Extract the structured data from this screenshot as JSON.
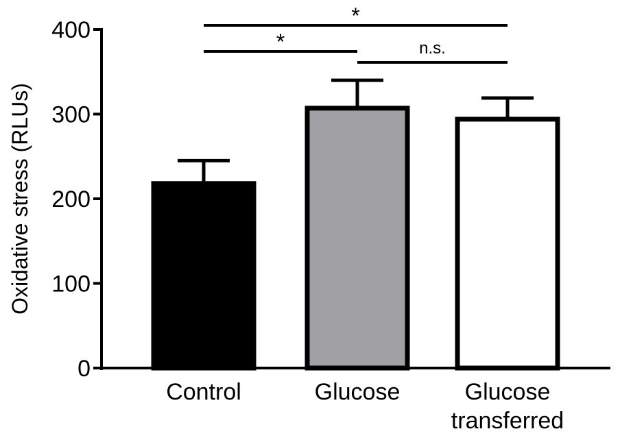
{
  "chart_data": {
    "type": "bar",
    "title": "",
    "xlabel": "",
    "ylabel": "Oxidative stress (RLUs)",
    "ylim": [
      0,
      400
    ],
    "yticks": [
      0,
      100,
      200,
      300,
      400
    ],
    "categories": [
      {
        "lines": [
          "Control"
        ]
      },
      {
        "lines": [
          "Glucose"
        ]
      },
      {
        "lines": [
          "Glucose",
          "transferred"
        ]
      }
    ],
    "values": [
      218,
      307,
      294
    ],
    "errors": [
      27,
      33,
      25
    ],
    "fill_colors": [
      "#000000",
      "#a1a0a5",
      "#ffffff"
    ],
    "significance": [
      {
        "from": 0,
        "to": 2,
        "label": "*",
        "level": 0
      },
      {
        "from": 0,
        "to": 1,
        "label": "*",
        "level": 1
      },
      {
        "from": 1,
        "to": 2,
        "label": "n.s.",
        "level": 2
      }
    ],
    "grid": false
  }
}
